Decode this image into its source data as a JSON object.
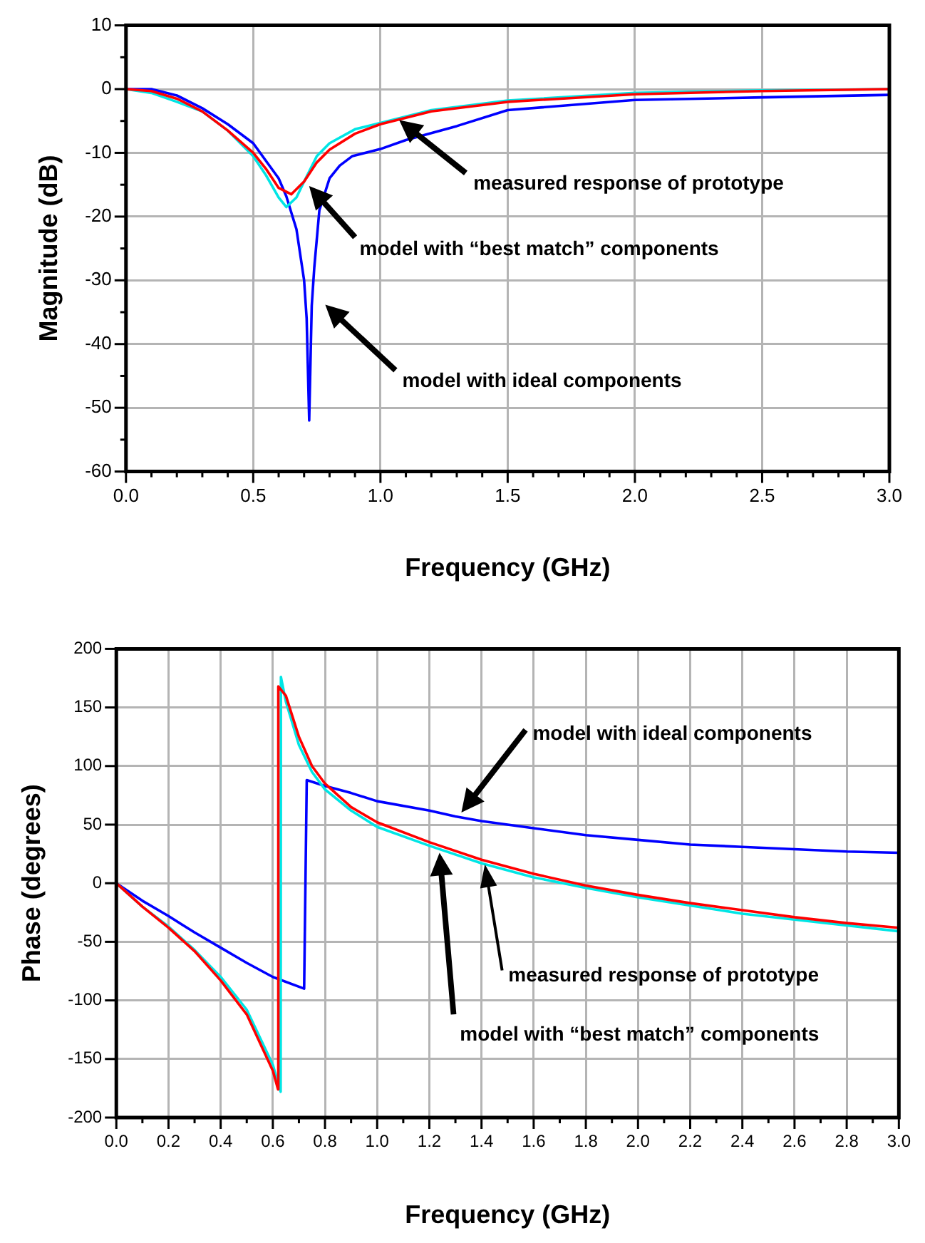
{
  "chart_data": [
    {
      "type": "line",
      "xlabel": "Frequency (GHz)",
      "ylabel": "Magnitude (dB)",
      "grid": true,
      "legend": false,
      "marker": "none",
      "line_style": "solid",
      "xlim": [
        0,
        3
      ],
      "ylim": [
        -60,
        10
      ],
      "xticks": [
        {
          "value": 0,
          "label": "0.0"
        },
        {
          "value": 0.1,
          "label": null
        },
        {
          "value": 0.2,
          "label": null
        },
        {
          "value": 0.3,
          "label": null
        },
        {
          "value": 0.4,
          "label": null
        },
        {
          "value": 0.5,
          "label": "0.5"
        },
        {
          "value": 0.6,
          "label": null
        },
        {
          "value": 0.7,
          "label": null
        },
        {
          "value": 0.8,
          "label": null
        },
        {
          "value": 0.9,
          "label": null
        },
        {
          "value": 1,
          "label": "1.0"
        },
        {
          "value": 1.1,
          "label": null
        },
        {
          "value": 1.2,
          "label": null
        },
        {
          "value": 1.3,
          "label": null
        },
        {
          "value": 1.4,
          "label": null
        },
        {
          "value": 1.5,
          "label": "1.5"
        },
        {
          "value": 1.6,
          "label": null
        },
        {
          "value": 1.7,
          "label": null
        },
        {
          "value": 1.8,
          "label": null
        },
        {
          "value": 1.9,
          "label": null
        },
        {
          "value": 2,
          "label": "2.0"
        },
        {
          "value": 2.1,
          "label": null
        },
        {
          "value": 2.2,
          "label": null
        },
        {
          "value": 2.3,
          "label": null
        },
        {
          "value": 2.4,
          "label": null
        },
        {
          "value": 2.5,
          "label": "2.5"
        },
        {
          "value": 2.6,
          "label": null
        },
        {
          "value": 2.7,
          "label": null
        },
        {
          "value": 2.8,
          "label": null
        },
        {
          "value": 2.9,
          "label": null
        },
        {
          "value": 3,
          "label": "3.0"
        }
      ],
      "yticks": [
        -60,
        {
          "value": -55,
          "label": null
        },
        -50,
        {
          "value": -45,
          "label": null
        },
        -40,
        {
          "value": -35,
          "label": null
        },
        -30,
        {
          "value": -25,
          "label": null
        },
        -20,
        {
          "value": -15,
          "label": null
        },
        -10,
        {
          "value": -5,
          "label": null
        },
        0,
        {
          "value": 5,
          "label": null
        },
        10
      ],
      "series": [
        {
          "color": "#ff0000",
          "x": [
            0,
            0.1,
            0.2,
            0.3,
            0.4,
            0.5,
            0.55,
            0.6,
            0.65,
            0.7,
            0.75,
            0.8,
            0.9,
            1,
            1.1,
            1.2,
            1.5,
            2,
            2.5,
            3
          ],
          "values": [
            0,
            -0.3,
            -1.5,
            -3.5,
            -6.5,
            -10,
            -12.5,
            -15.5,
            -16.5,
            -14.5,
            -11.5,
            -9.5,
            -7,
            -5.5,
            -4.5,
            -3.5,
            -2,
            -0.8,
            -0.3,
            0
          ]
        },
        {
          "color": "#00e5e5",
          "x": [
            0,
            0.1,
            0.2,
            0.3,
            0.4,
            0.5,
            0.55,
            0.6,
            0.63,
            0.67,
            0.7,
            0.75,
            0.8,
            0.9,
            1,
            1.1,
            1.2,
            1.5,
            2,
            2.5,
            3
          ],
          "values": [
            0,
            -0.6,
            -2,
            -3.5,
            -6.5,
            -10.5,
            -13.5,
            -17,
            -18.5,
            -17,
            -14.5,
            -10.5,
            -8.5,
            -6.3,
            -5.3,
            -4.3,
            -3.3,
            -1.8,
            -0.6,
            -0.2,
            0
          ]
        },
        {
          "color": "#0000ff",
          "x": [
            0,
            0.1,
            0.2,
            0.3,
            0.4,
            0.5,
            0.6,
            0.63,
            0.67,
            0.7,
            0.71,
            0.72,
            0.73,
            0.74,
            0.76,
            0.8,
            0.84,
            0.89,
            1,
            1.1,
            1.3,
            1.5,
            2,
            2.5,
            3
          ],
          "values": [
            0,
            0,
            -1,
            -3,
            -5.5,
            -8.5,
            -14,
            -16.8,
            -22,
            -30,
            -36,
            -52,
            -34,
            -28,
            -19,
            -14,
            -12,
            -10.5,
            -9.4,
            -8,
            -5.8,
            -3.3,
            -1.7,
            -1.3,
            -0.9
          ]
        }
      ],
      "annotations": [
        "measured response of prototype",
        "model with “best match” components",
        "model with ideal components"
      ]
    },
    {
      "type": "line",
      "xlabel": "Frequency (GHz)",
      "ylabel": "Phase (degrees)",
      "grid": true,
      "legend": false,
      "marker": "none",
      "line_style": "solid",
      "xlim": [
        0,
        3
      ],
      "ylim": [
        -200,
        200
      ],
      "xticks": [
        {
          "value": 0,
          "label": "0.0"
        },
        {
          "value": 0.1,
          "label": null
        },
        {
          "value": 0.2,
          "label": "0.2"
        },
        {
          "value": 0.3,
          "label": null
        },
        {
          "value": 0.4,
          "label": "0.4"
        },
        {
          "value": 0.5,
          "label": null
        },
        {
          "value": 0.6,
          "label": "0.6"
        },
        {
          "value": 0.7,
          "label": null
        },
        {
          "value": 0.8,
          "label": "0.8"
        },
        {
          "value": 0.9,
          "label": null
        },
        {
          "value": 1,
          "label": "1.0"
        },
        {
          "value": 1.1,
          "label": null
        },
        {
          "value": 1.2,
          "label": "1.2"
        },
        {
          "value": 1.3,
          "label": null
        },
        {
          "value": 1.4,
          "label": "1.4"
        },
        {
          "value": 1.5,
          "label": null
        },
        {
          "value": 1.6,
          "label": "1.6"
        },
        {
          "value": 1.7,
          "label": null
        },
        {
          "value": 1.8,
          "label": "1.8"
        },
        {
          "value": 1.9,
          "label": null
        },
        {
          "value": 2,
          "label": "2.0"
        },
        {
          "value": 2.1,
          "label": null
        },
        {
          "value": 2.2,
          "label": "2.2"
        },
        {
          "value": 2.3,
          "label": null
        },
        {
          "value": 2.4,
          "label": "2.4"
        },
        {
          "value": 2.5,
          "label": null
        },
        {
          "value": 2.6,
          "label": "2.6"
        },
        {
          "value": 2.7,
          "label": null
        },
        {
          "value": 2.8,
          "label": "2.8"
        },
        {
          "value": 2.9,
          "label": null
        },
        {
          "value": 3,
          "label": "3.0"
        }
      ],
      "yticks": [
        -200,
        -150,
        -100,
        -50,
        0,
        50,
        100,
        150,
        200
      ],
      "series": [
        {
          "color": "#ff0000",
          "x": [
            0,
            0.1,
            0.2,
            0.3,
            0.4,
            0.5,
            0.6,
            0.62,
            0.621,
            0.65,
            0.7,
            0.75,
            0.8,
            0.9,
            1,
            1.2,
            1.4,
            1.6,
            1.8,
            2,
            2.2,
            2.4,
            2.6,
            2.8,
            3
          ],
          "values": [
            0,
            -20,
            -38,
            -58,
            -83,
            -112,
            -160,
            -176,
            168,
            160,
            125,
            100,
            85,
            65,
            52,
            35,
            20,
            8,
            -2,
            -10,
            -17,
            -23,
            -29,
            -34,
            -38
          ]
        },
        {
          "color": "#00e5e5",
          "x": [
            0,
            0.1,
            0.2,
            0.3,
            0.4,
            0.5,
            0.6,
            0.63,
            0.631,
            0.65,
            0.7,
            0.75,
            0.8,
            0.9,
            1,
            1.2,
            1.4,
            1.6,
            1.8,
            2,
            2.2,
            2.4,
            2.6,
            2.8,
            3
          ],
          "values": [
            0,
            -20,
            -37,
            -57,
            -80,
            -108,
            -155,
            -178,
            176,
            155,
            118,
            95,
            80,
            62,
            48,
            32,
            17,
            5,
            -4,
            -12,
            -19,
            -26,
            -31,
            -36,
            -41
          ]
        },
        {
          "color": "#0000ff",
          "x": [
            0,
            0.1,
            0.2,
            0.3,
            0.4,
            0.5,
            0.6,
            0.72,
            0.73,
            0.8,
            0.9,
            1,
            1.2,
            1.3,
            1.4,
            1.6,
            1.8,
            2,
            2.2,
            2.4,
            2.6,
            2.8,
            3
          ],
          "values": [
            0,
            -15,
            -28,
            -42,
            -55,
            -68,
            -80,
            -90,
            88,
            83,
            77,
            70,
            62,
            57,
            53,
            47,
            41,
            37,
            33,
            31,
            29,
            27,
            26
          ]
        }
      ],
      "annotations": [
        "model with ideal components",
        "measured response of prototype",
        "model with “best match” components"
      ]
    }
  ]
}
